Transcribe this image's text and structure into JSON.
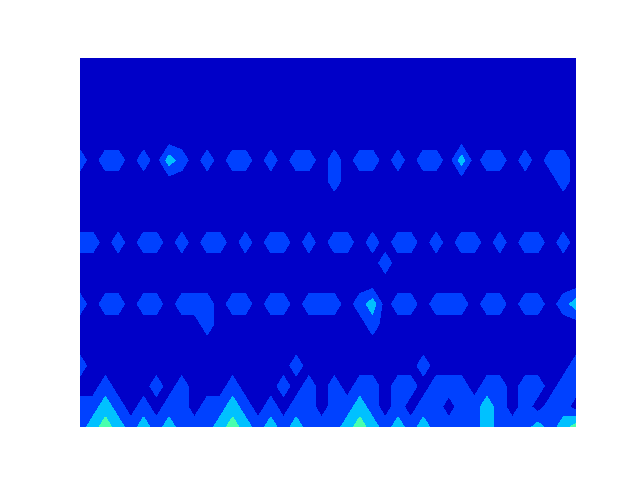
{
  "chart_data": {
    "type": "contour",
    "tick_labels": false,
    "levels": [
      0,
      1,
      2,
      3,
      4,
      5,
      6,
      7,
      8
    ],
    "cells": [
      [
        0.5,
        0.5,
        0.5,
        0.5,
        0.5,
        0.5,
        0.5,
        0.5,
        0.5,
        0.5,
        0.5,
        0.5,
        0.5,
        0.5,
        0.5,
        0.5,
        0.5,
        0.5,
        0.5,
        0.5,
        0.5,
        0.5,
        0.5,
        0.5,
        0.5,
        0.5,
        0.5,
        0.5,
        0.5,
        0.5,
        0.5,
        0.5,
        0.5,
        0.5,
        0.5,
        0.5,
        0.5,
        0.5,
        0.5,
        0.5
      ],
      [
        0.5,
        0.5,
        0.5,
        0.5,
        0.5,
        0.5,
        0.5,
        0.5,
        0.5,
        0.5,
        0.5,
        0.5,
        0.5,
        0.5,
        0.5,
        0.5,
        0.5,
        0.5,
        0.5,
        0.5,
        0.5,
        0.5,
        0.5,
        0.5,
        0.5,
        0.5,
        0.5,
        0.5,
        0.5,
        0.5,
        0.5,
        0.5,
        0.5,
        0.5,
        0.5,
        0.5,
        0.5,
        0.5,
        0.5,
        0.5
      ],
      [
        0.5,
        0.5,
        0.5,
        0.5,
        0.5,
        0.5,
        0.5,
        0.5,
        0.5,
        0.5,
        0.5,
        0.5,
        0.5,
        0.5,
        0.5,
        0.5,
        0.5,
        0.5,
        0.5,
        0.5,
        0.5,
        0.5,
        0.5,
        0.5,
        0.5,
        0.5,
        0.5,
        0.5,
        0.5,
        0.5,
        0.5,
        0.5,
        0.5,
        0.5,
        0.5,
        0.5,
        0.5,
        0.5,
        0.5,
        0.5
      ],
      [
        0.5,
        0.5,
        0.5,
        0.5,
        0.5,
        0.5,
        0.5,
        0.5,
        0.5,
        0.5,
        0.5,
        0.5,
        0.5,
        0.5,
        0.5,
        0.5,
        0.5,
        0.5,
        0.5,
        0.5,
        0.5,
        0.5,
        0.5,
        0.5,
        0.5,
        0.5,
        0.5,
        0.5,
        0.5,
        0.5,
        0.5,
        0.5,
        0.5,
        0.5,
        0.5,
        0.5,
        0.5,
        0.5,
        0.5,
        0.5
      ],
      [
        0.5,
        0.5,
        0.5,
        0.5,
        0.5,
        0.5,
        0.5,
        0.5,
        0.5,
        0.5,
        0.5,
        0.5,
        0.5,
        0.5,
        0.5,
        0.5,
        0.5,
        0.5,
        0.5,
        0.5,
        0.5,
        0.5,
        0.5,
        0.5,
        0.5,
        0.5,
        0.5,
        0.5,
        0.5,
        0.5,
        0.5,
        0.5,
        0.5,
        0.5,
        0.5,
        0.5,
        0.5,
        0.5,
        0.5,
        0.5
      ],
      [
        1.5,
        0.5,
        1.5,
        1.5,
        0.5,
        1.5,
        0.5,
        2.5,
        1.5,
        0.5,
        1.5,
        0.5,
        1.5,
        1.5,
        0.5,
        1.5,
        0.5,
        1.5,
        1.5,
        0.5,
        1.5,
        0.5,
        1.5,
        1.5,
        0.5,
        1.5,
        0.5,
        1.5,
        1.5,
        0.5,
        2.5,
        0.5,
        1.5,
        1.5,
        0.5,
        1.5,
        0.5,
        1.5,
        1.5,
        0.5
      ],
      [
        0.5,
        0.5,
        0.5,
        0.5,
        0.5,
        0.5,
        0.5,
        0.5,
        0.5,
        0.5,
        0.5,
        0.5,
        0.5,
        0.5,
        0.5,
        0.5,
        0.5,
        0.5,
        0.5,
        0.5,
        1.5,
        0.5,
        0.5,
        0.5,
        0.5,
        0.5,
        0.5,
        0.5,
        0.5,
        0.5,
        0.5,
        0.5,
        0.5,
        0.5,
        0.5,
        0.5,
        0.5,
        0.5,
        1.5,
        0.5
      ],
      [
        0.5,
        0.5,
        0.5,
        0.5,
        0.5,
        0.5,
        0.5,
        0.5,
        0.5,
        0.5,
        0.5,
        0.5,
        0.5,
        0.5,
        0.5,
        0.5,
        0.5,
        0.5,
        0.5,
        0.5,
        0.5,
        0.5,
        0.5,
        0.5,
        0.5,
        0.5,
        0.5,
        0.5,
        0.5,
        0.5,
        0.5,
        0.5,
        0.5,
        0.5,
        0.5,
        0.5,
        0.5,
        0.5,
        0.5,
        0.5
      ],
      [
        0.5,
        0.5,
        0.5,
        0.5,
        0.5,
        0.5,
        0.5,
        0.5,
        0.5,
        0.5,
        0.5,
        0.5,
        0.5,
        0.5,
        0.5,
        0.5,
        0.5,
        0.5,
        0.5,
        0.5,
        0.5,
        0.5,
        0.5,
        0.5,
        0.5,
        0.5,
        0.5,
        0.5,
        0.5,
        0.5,
        0.5,
        0.5,
        0.5,
        0.5,
        0.5,
        0.5,
        0.5,
        0.5,
        0.5,
        0.5
      ],
      [
        1.5,
        1.5,
        0.5,
        1.5,
        0.5,
        1.5,
        1.5,
        0.5,
        1.5,
        0.5,
        1.5,
        1.5,
        0.5,
        1.5,
        0.5,
        1.5,
        1.5,
        0.5,
        1.5,
        0.5,
        1.5,
        1.5,
        0.5,
        1.5,
        0.5,
        1.5,
        1.5,
        0.5,
        1.5,
        0.5,
        1.5,
        1.5,
        0.5,
        1.5,
        0.5,
        1.5,
        1.5,
        0.5,
        1.5,
        0.5
      ],
      [
        0.5,
        0.5,
        0.5,
        0.5,
        0.5,
        0.5,
        0.5,
        0.5,
        0.5,
        0.5,
        0.5,
        0.5,
        0.5,
        0.5,
        0.5,
        0.5,
        0.5,
        0.5,
        0.5,
        0.5,
        0.5,
        0.5,
        0.5,
        0.5,
        1.5,
        0.5,
        0.5,
        0.5,
        0.5,
        0.5,
        0.5,
        0.5,
        0.5,
        0.5,
        0.5,
        0.5,
        0.5,
        0.5,
        0.5,
        0.5
      ],
      [
        0.5,
        0.5,
        0.5,
        0.5,
        0.5,
        0.5,
        0.5,
        0.5,
        0.5,
        0.5,
        0.5,
        0.5,
        0.5,
        0.5,
        0.5,
        0.5,
        0.5,
        0.5,
        0.5,
        0.5,
        0.5,
        0.5,
        0.5,
        0.5,
        0.5,
        0.5,
        0.5,
        0.5,
        0.5,
        0.5,
        0.5,
        0.5,
        0.5,
        0.5,
        0.5,
        0.5,
        0.5,
        0.5,
        0.5,
        0.5
      ],
      [
        1.5,
        0.5,
        1.5,
        1.5,
        0.5,
        1.5,
        1.5,
        0.5,
        1.5,
        1.5,
        1.5,
        0.5,
        1.5,
        1.5,
        0.5,
        1.5,
        1.5,
        0.5,
        1.5,
        1.5,
        1.5,
        0.5,
        1.5,
        2.5,
        0.5,
        1.5,
        1.5,
        0.5,
        1.5,
        1.5,
        1.5,
        0.5,
        1.5,
        1.5,
        0.5,
        1.5,
        1.5,
        0.5,
        1.5,
        2.5
      ],
      [
        0.5,
        0.5,
        0.5,
        0.5,
        0.5,
        0.5,
        0.5,
        0.5,
        0.5,
        0.5,
        1.5,
        0.5,
        0.5,
        0.5,
        0.5,
        0.5,
        0.5,
        0.5,
        0.5,
        0.5,
        0.5,
        0.5,
        0.5,
        1.5,
        0.5,
        0.5,
        0.5,
        0.5,
        0.5,
        0.5,
        0.5,
        0.5,
        0.5,
        0.5,
        0.5,
        0.5,
        0.5,
        0.5,
        0.5,
        0.5
      ],
      [
        0.5,
        0.5,
        0.5,
        0.5,
        0.5,
        0.5,
        0.5,
        0.5,
        0.5,
        0.5,
        0.5,
        0.5,
        0.5,
        0.5,
        0.5,
        0.5,
        0.5,
        0.5,
        0.5,
        0.5,
        0.5,
        0.5,
        0.5,
        0.5,
        0.5,
        0.5,
        0.5,
        0.5,
        0.5,
        0.5,
        0.5,
        0.5,
        0.5,
        0.5,
        0.5,
        0.5,
        0.5,
        0.5,
        0.5,
        0.5
      ],
      [
        1.5,
        0.5,
        0.5,
        0.5,
        0.5,
        0.5,
        0.5,
        0.5,
        0.5,
        0.5,
        0.5,
        0.5,
        0.5,
        0.5,
        0.5,
        0.5,
        0.5,
        1.5,
        0.5,
        0.5,
        0.5,
        0.5,
        0.5,
        0.5,
        0.5,
        0.5,
        0.5,
        1.5,
        0.5,
        0.5,
        0.5,
        0.5,
        0.5,
        0.5,
        0.5,
        0.5,
        0.5,
        0.5,
        0.5,
        1.5
      ],
      [
        0.5,
        0.5,
        1.5,
        0.5,
        0.5,
        0.5,
        1.5,
        0.5,
        1.5,
        0.5,
        0.5,
        0.5,
        1.5,
        0.5,
        0.5,
        0.5,
        1.5,
        0.5,
        1.5,
        0.5,
        1.5,
        0.5,
        1.5,
        1.5,
        0.5,
        1.5,
        1.5,
        0.5,
        1.5,
        1.5,
        1.5,
        0.5,
        1.5,
        1.5,
        0.5,
        1.5,
        1.5,
        0.5,
        1.5,
        1.5
      ],
      [
        1.5,
        1.5,
        2.5,
        1.5,
        0.5,
        1.5,
        0.5,
        1.5,
        1.5,
        0.5,
        1.5,
        1.5,
        2.5,
        1.5,
        0.5,
        1.5,
        0.5,
        1.5,
        1.5,
        0.5,
        1.5,
        1.5,
        2.5,
        1.5,
        0.5,
        1.5,
        0.5,
        1.5,
        1.5,
        0.5,
        1.5,
        1.5,
        2.5,
        1.5,
        0.5,
        1.5,
        0.5,
        1.5,
        1.5,
        0.5
      ],
      [
        1.5,
        2.5,
        3.5,
        2.5,
        1.5,
        2.5,
        1.5,
        2.5,
        1.5,
        1.5,
        1.5,
        2.5,
        3.5,
        2.5,
        1.5,
        2.5,
        1.5,
        2.5,
        1.5,
        1.5,
        1.5,
        2.5,
        3.5,
        2.5,
        1.5,
        2.5,
        1.5,
        2.5,
        1.5,
        1.5,
        1.5,
        1.5,
        2.5,
        1.5,
        1.5,
        1.5,
        2.5,
        1.5,
        2.5,
        3.5
      ]
    ]
  }
}
